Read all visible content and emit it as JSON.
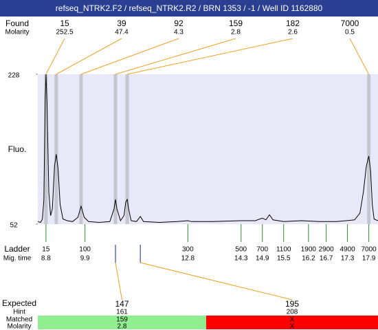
{
  "header": {
    "title": "refseq_NTRK2.F2 / refseq_NTRK2.R2 / BRN 1353 / -1 / Well ID 1162880"
  },
  "chart_data": {
    "type": "electropherogram",
    "ylabel": "Fluo.",
    "ylim": [
      52,
      228
    ],
    "yticks": [
      52,
      228
    ],
    "xlim": [
      8.57,
      18.16
    ],
    "trace": {
      "x": [
        8.57,
        8.65,
        8.7,
        8.74,
        8.78,
        8.8,
        8.83,
        8.88,
        8.93,
        8.98,
        9.04,
        9.09,
        9.14,
        9.2,
        9.28,
        9.4,
        9.55,
        9.7,
        9.79,
        9.88,
        10.0,
        10.3,
        10.6,
        10.72,
        10.76,
        10.8,
        10.9,
        11.0,
        11.05,
        11.09,
        11.13,
        11.2,
        11.35,
        11.46,
        11.55,
        12.0,
        12.5,
        12.8,
        12.9,
        13.5,
        14.3,
        14.7,
        14.9,
        15.0,
        15.1,
        15.2,
        15.5,
        16.0,
        16.5,
        17.0,
        17.5,
        17.65,
        17.75,
        17.83,
        17.9,
        17.95,
        18.0,
        18.05,
        18.16
      ],
      "values": [
        55,
        54,
        58,
        80,
        200,
        228,
        195,
        90,
        62,
        70,
        120,
        134,
        118,
        75,
        58,
        56,
        55,
        60,
        73,
        60,
        55,
        54,
        55,
        70,
        81,
        70,
        56,
        62,
        78,
        81,
        70,
        56,
        55,
        61,
        55,
        54,
        55,
        56,
        55,
        55,
        56,
        56,
        59,
        57,
        63,
        57,
        55,
        56,
        55,
        55,
        57,
        65,
        90,
        120,
        132,
        115,
        75,
        58,
        56
      ]
    },
    "found": {
      "label": "Found",
      "molarity_label": "Molarity",
      "peaks": [
        {
          "size": 15,
          "molarity": 252.5,
          "mig_time": 8.8
        },
        {
          "size": 39,
          "molarity": 47.4,
          "mig_time": 9.09
        },
        {
          "size": 92,
          "molarity": 4.3,
          "mig_time": 9.79
        },
        {
          "size": 159,
          "molarity": 2.8,
          "mig_time": 10.76
        },
        {
          "size": 182,
          "molarity": 2.6,
          "mig_time": 11.09
        },
        {
          "size": 7000,
          "molarity": 0.5,
          "mig_time": 17.9
        }
      ]
    },
    "ladder": {
      "label": "Ladder",
      "mig_label": "Mig. time",
      "sizes": [
        15,
        100,
        300,
        500,
        700,
        1100,
        1900,
        2900,
        4900,
        7000
      ],
      "mig_times": [
        8.8,
        9.9,
        12.8,
        14.3,
        14.9,
        15.5,
        16.2,
        16.7,
        17.3,
        17.9
      ]
    },
    "expected": {
      "label": "Expected",
      "hint_label": "Hint",
      "matched_label": "Matched",
      "molarity_label": "Molarity",
      "items": [
        {
          "size": 147,
          "hint": 161,
          "matched": 159,
          "molarity": 2.8,
          "mig_time": 10.76
        },
        {
          "size": 195,
          "hint": 208,
          "matched": "X",
          "molarity": "X",
          "mig_time": 11.46
        }
      ]
    }
  }
}
